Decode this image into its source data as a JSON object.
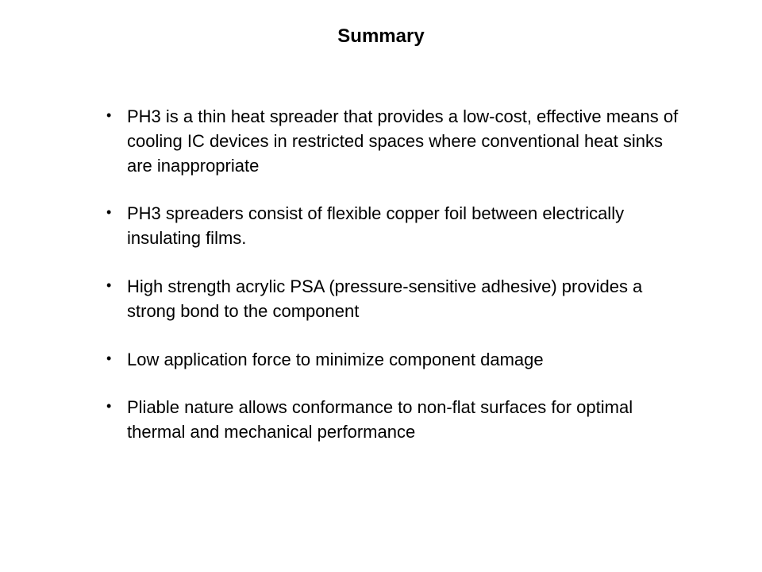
{
  "title": "Summary",
  "bullets": [
    "PH3 is a thin heat spreader that provides a low-cost, effective means of cooling IC devices in restricted spaces where conventional heat sinks are inappropriate",
    "PH3 spreaders consist of flexible copper foil between electrically insulating films.",
    "High strength acrylic PSA (pressure-sensitive adhesive) provides a strong bond to the component",
    "Low application force to minimize component damage",
    "Pliable nature allows conformance to non-flat surfaces for optimal thermal and mechanical performance"
  ],
  "colors": {
    "background": "#ffffff",
    "text": "#000000"
  },
  "typography": {
    "title_fontsize": 24,
    "title_weight": "bold",
    "body_fontsize": 22,
    "font_family": "Arial"
  }
}
